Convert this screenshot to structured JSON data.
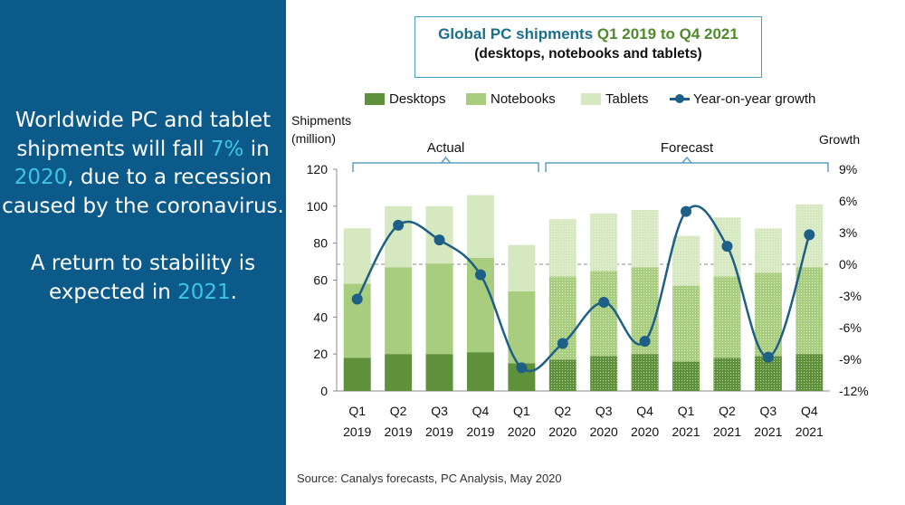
{
  "left_panel": {
    "text_a1": "Worldwide PC and tablet shipments will fall ",
    "highlight_a": "7%",
    "text_a2": " in ",
    "highlight_b": "2020",
    "text_a3": ", due to a recession caused by the coronavirus.",
    "text_b1": "A return to stability is expected in ",
    "highlight_c": "2021",
    "text_b2": "."
  },
  "colors": {
    "panel_bg": "#0c5a8a",
    "highlight": "#3cc6e6",
    "desktops": "#5e913a",
    "notebooks": "#a9cd7e",
    "tablets": "#d6e8bf",
    "growth_line": "#1d5f86"
  },
  "chart_data": {
    "type": "bar",
    "title_part1": "Global PC shipments",
    "title_part2": "Q1 2019 to Q4 2021",
    "subtitle": "(desktops, notebooks and tablets)",
    "ylabel_left": "Shipments\n(million)",
    "ylabel_right": "Growth",
    "ylim": [
      0,
      120
    ],
    "y2lim": [
      -12,
      9
    ],
    "yticks": [
      "0",
      "20",
      "40",
      "60",
      "80",
      "100",
      "120"
    ],
    "y2ticks": [
      "-12%",
      "-9%",
      "-6%",
      "-3%",
      "0%",
      "3%",
      "6%",
      "9%"
    ],
    "categories": [
      [
        "Q1",
        "2019"
      ],
      [
        "Q2",
        "2019"
      ],
      [
        "Q3",
        "2019"
      ],
      [
        "Q4",
        "2019"
      ],
      [
        "Q1",
        "2020"
      ],
      [
        "Q2",
        "2020"
      ],
      [
        "Q3",
        "2020"
      ],
      [
        "Q4",
        "2020"
      ],
      [
        "Q1",
        "2021"
      ],
      [
        "Q2",
        "2021"
      ],
      [
        "Q3",
        "2021"
      ],
      [
        "Q4",
        "2021"
      ]
    ],
    "series": [
      {
        "name": "Desktops",
        "values": [
          18,
          20,
          20,
          21,
          15,
          17,
          19,
          20,
          16,
          18,
          19,
          20
        ]
      },
      {
        "name": "Notebooks",
        "values": [
          40,
          47,
          49,
          51,
          39,
          45,
          46,
          47,
          41,
          44,
          45,
          47
        ]
      },
      {
        "name": "Tablets",
        "values": [
          30,
          33,
          31,
          34,
          25,
          31,
          31,
          31,
          27,
          32,
          24,
          34
        ]
      }
    ],
    "growth": {
      "name": "Year-on-year growth",
      "values": [
        -3.3,
        3.7,
        2.3,
        -1.0,
        -9.8,
        -7.5,
        -3.6,
        -7.3,
        5.0,
        1.7,
        -8.8,
        2.8
      ]
    },
    "actual_count": 5,
    "bracket_labels": [
      "Actual",
      "Forecast"
    ],
    "grid": false,
    "legend": "top",
    "source": "Source:  Canalys forecasts, PC Analysis, May 2020"
  }
}
